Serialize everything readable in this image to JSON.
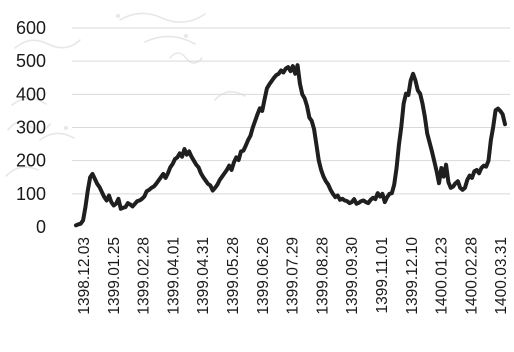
{
  "chart_data": {
    "type": "line",
    "title": "",
    "xlabel": "",
    "ylabel": "",
    "ylim": [
      0,
      600
    ],
    "yticks": [
      0,
      100,
      200,
      300,
      400,
      500,
      600
    ],
    "grid": "horizontal",
    "legend": "none",
    "colors": {
      "line": "#1f1f1f",
      "grid": "#d9d9d9",
      "text": "#1a1a1a"
    },
    "x_tick_labels": [
      "1398.12.03",
      "1399.01.25",
      "1399.02.28",
      "1399.04.01",
      "1399.04.31",
      "1399.05.28",
      "1399.06.26",
      "1399.07.29",
      "1399.08.28",
      "1399.09.30",
      "1399.11.01",
      "1399.12.10",
      "1400.01.23",
      "1400.02.28",
      "1400.03.31"
    ],
    "series": [
      {
        "values": [
          5,
          8,
          10,
          20,
          60,
          110,
          150,
          160,
          145,
          130,
          120,
          105,
          90,
          80,
          95,
          75,
          65,
          70,
          85,
          55,
          58,
          60,
          72,
          68,
          62,
          70,
          78,
          80,
          85,
          92,
          108,
          112,
          118,
          122,
          130,
          140,
          150,
          160,
          148,
          162,
          180,
          190,
          205,
          210,
          222,
          212,
          235,
          218,
          228,
          212,
          200,
          188,
          180,
          162,
          150,
          140,
          130,
          125,
          110,
          118,
          128,
          142,
          152,
          162,
          172,
          185,
          172,
          195,
          210,
          202,
          228,
          230,
          245,
          262,
          275,
          300,
          320,
          340,
          358,
          350,
          385,
          418,
          430,
          440,
          450,
          458,
          462,
          472,
          466,
          478,
          482,
          470,
          485,
          462,
          488,
          432,
          400,
          388,
          365,
          330,
          320,
          295,
          248,
          200,
          172,
          152,
          138,
          128,
          112,
          100,
          90,
          95,
          82,
          85,
          80,
          78,
          72,
          75,
          84,
          70,
          73,
          78,
          80,
          75,
          72,
          82,
          88,
          84,
          102,
          92,
          100,
          75,
          90,
          100,
          102,
          128,
          178,
          248,
          302,
          372,
          402,
          398,
          442,
          462,
          442,
          412,
          402,
          372,
          332,
          282,
          255,
          228,
          198,
          168,
          132,
          178,
          152,
          188,
          135,
          118,
          122,
          132,
          138,
          118,
          112,
          118,
          142,
          155,
          148,
          168,
          172,
          162,
          178,
          185,
          182,
          200,
          262,
          302,
          352,
          357,
          350,
          340,
          310
        ]
      }
    ]
  }
}
